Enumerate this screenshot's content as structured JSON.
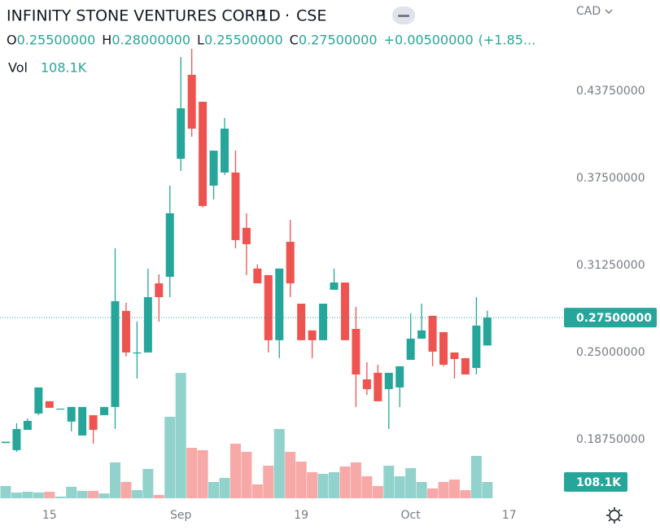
{
  "chart_data": {
    "type": "candlestick",
    "title": "INFINITY STONE VENTURES CORP",
    "interval": "1D",
    "exchange": "CSE",
    "currency": "CAD",
    "legend": [
      {
        "key": "O",
        "value": {
          "value": 0.255,
          "label": "0.25500000"
        }
      },
      {
        "key": "H",
        "value": {
          "value": 0.28,
          "label": "0.28000000"
        }
      },
      {
        "key": "L",
        "value": {
          "value": 0.255,
          "label": "0.25500000"
        }
      },
      {
        "key": "C",
        "value": {
          "value": 0.275,
          "label": "0.27500000"
        }
      }
    ],
    "change": {
      "value": 0.005,
      "label": "+0.00500000"
    },
    "change_pct_label": "(+1.85...",
    "volume_title": "Vol",
    "last_volume_label": "108.1K",
    "last_price": {
      "value": 0.275,
      "label": "0.27500000"
    },
    "up_color": "#26a69a",
    "down_color": "#ef5350",
    "up_volume_color": "#92d2cc",
    "down_volume_color": "#f7a9a7",
    "ylim": [
      0.1454,
      0.5029
    ],
    "yticks": [
      {
        "value": 0.1875,
        "label": "0.18750000"
      },
      {
        "value": 0.25,
        "label": "0.25000000"
      },
      {
        "value": 0.3125,
        "label": "0.31250000"
      },
      {
        "value": 0.375,
        "label": "0.37500000"
      },
      {
        "value": 0.4375,
        "label": "0.43750000"
      }
    ],
    "xticks": [
      {
        "value": 4,
        "label": "15"
      },
      {
        "value": 16,
        "label": "Sep"
      },
      {
        "value": 27,
        "label": "19"
      },
      {
        "value": 37,
        "label": "Oct"
      },
      {
        "value": 46,
        "label": "17"
      }
    ],
    "volume_lim": [
      0,
      1000
    ],
    "open": [
      0.185,
      0.1799,
      0.1945,
      0.2062,
      0.215,
      0.2097,
      0.2004,
      0.1904,
      0.205,
      0.205,
      0.2109,
      0.2798,
      0.25,
      0.25,
      0.2996,
      0.3043,
      0.389,
      0.4492,
      0.4299,
      0.3697,
      0.3791,
      0.3791,
      0.3394,
      0.3102,
      0.3055,
      0.2588,
      0.3294,
      0.285,
      0.2658,
      0.2588,
      0.295,
      0.3002,
      0.2669,
      0.2307,
      0.2354,
      0.2237,
      0.2249,
      0.2447,
      0.2599,
      0.2763,
      0.2646,
      0.25,
      0.2459,
      0.2389,
      0.255
    ],
    "high": [
      0.186,
      0.1992,
      0.2027,
      0.2249,
      0.215,
      0.2097,
      0.2109,
      0.2109,
      0.205,
      0.2109,
      0.3248,
      0.2856,
      0.2722,
      0.3102,
      0.3061,
      0.3697,
      0.462,
      0.4679,
      0.4299,
      0.3948,
      0.4182,
      0.3948,
      0.3499,
      0.3131,
      0.3055,
      0.3102,
      0.3452,
      0.285,
      0.2658,
      0.285,
      0.3102,
      0.3002,
      0.2827,
      0.243,
      0.2412,
      0.2354,
      0.2401,
      0.278,
      0.285,
      0.2763,
      0.2646,
      0.25,
      0.2459,
      0.2897,
      0.28
    ],
    "low": [
      0.185,
      0.1787,
      0.1945,
      0.205,
      0.2103,
      0.2097,
      0.1934,
      0.1904,
      0.1846,
      0.205,
      0.1951,
      0.2471,
      0.2313,
      0.25,
      0.2722,
      0.2897,
      0.3802,
      0.4048,
      0.354,
      0.3598,
      0.3773,
      0.3248,
      0.3055,
      0.2996,
      0.25,
      0.2459,
      0.2897,
      0.2588,
      0.2459,
      0.2588,
      0.295,
      0.2588,
      0.2109,
      0.2196,
      0.215,
      0.1951,
      0.2109,
      0.2447,
      0.2599,
      0.2401,
      0.2401,
      0.2313,
      0.2342,
      0.2342,
      0.255
    ],
    "close": [
      0.186,
      0.1951,
      0.2009,
      0.2249,
      0.2103,
      0.2097,
      0.2109,
      0.2109,
      0.1945,
      0.2109,
      0.2868,
      0.25,
      0.25,
      0.2897,
      0.2897,
      0.3499,
      0.4252,
      0.4106,
      0.3551,
      0.3948,
      0.4106,
      0.3306,
      0.3277,
      0.2996,
      0.2588,
      0.3102,
      0.2996,
      0.2588,
      0.2588,
      0.285,
      0.3002,
      0.2588,
      0.2342,
      0.2237,
      0.215,
      0.2354,
      0.2401,
      0.2599,
      0.2658,
      0.2506,
      0.2412,
      0.2453,
      0.2342,
      0.2693,
      0.275
    ],
    "volume": [
      81,
      38,
      43,
      38,
      43,
      11,
      76,
      49,
      49,
      32,
      238,
      108,
      54,
      195,
      22,
      541,
      832,
      335,
      319,
      108,
      135,
      362,
      308,
      92,
      216,
      460,
      308,
      243,
      173,
      162,
      173,
      211,
      238,
      146,
      81,
      216,
      146,
      200,
      108,
      65,
      108,
      124,
      54,
      281,
      108.1
    ]
  }
}
